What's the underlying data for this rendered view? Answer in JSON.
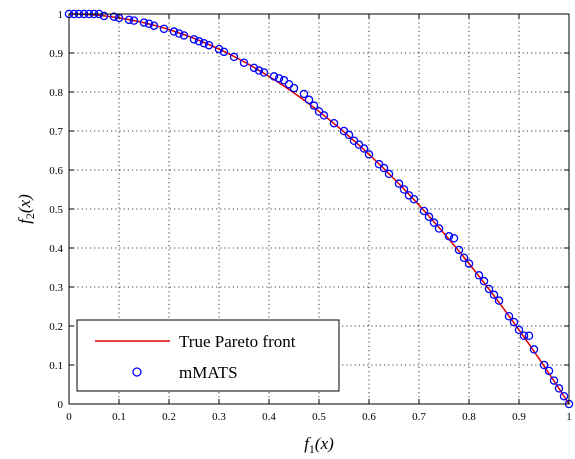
{
  "chart_data": {
    "type": "scatter",
    "xlabel": {
      "f": "f",
      "sub": "1",
      "arg": "(x)"
    },
    "ylabel": {
      "f": "f",
      "sub": "2",
      "arg": "(x)"
    },
    "xlim": [
      0,
      1
    ],
    "ylim": [
      0,
      1
    ],
    "xticks": [
      "0",
      "0.1",
      "0.2",
      "0.3",
      "0.4",
      "0.5",
      "0.6",
      "0.7",
      "0.8",
      "0.9",
      "1"
    ],
    "yticks": [
      "0",
      "0.1",
      "0.2",
      "0.3",
      "0.4",
      "0.5",
      "0.6",
      "0.7",
      "0.8",
      "0.9",
      "1"
    ],
    "grid": true,
    "grid_style": "dotted",
    "legend_position": "bottom-left",
    "series": [
      {
        "name": "True Pareto front",
        "kind": "line",
        "color": "#dd0000",
        "equation": "f2 = 1 - f1^2",
        "x_range": [
          0,
          1
        ]
      },
      {
        "name": "mMATS",
        "kind": "scatter",
        "marker": "open-circle",
        "color": "#0000ff",
        "x": [
          0.0,
          0.01,
          0.02,
          0.03,
          0.04,
          0.05,
          0.06,
          0.07,
          0.09,
          0.1,
          0.12,
          0.13,
          0.15,
          0.16,
          0.17,
          0.19,
          0.21,
          0.22,
          0.23,
          0.25,
          0.26,
          0.27,
          0.28,
          0.3,
          0.31,
          0.33,
          0.35,
          0.37,
          0.38,
          0.39,
          0.41,
          0.42,
          0.43,
          0.44,
          0.45,
          0.47,
          0.48,
          0.49,
          0.5,
          0.51,
          0.53,
          0.55,
          0.56,
          0.57,
          0.58,
          0.59,
          0.6,
          0.62,
          0.63,
          0.64,
          0.66,
          0.67,
          0.68,
          0.69,
          0.71,
          0.72,
          0.73,
          0.74,
          0.76,
          0.77,
          0.78,
          0.79,
          0.8,
          0.82,
          0.83,
          0.84,
          0.85,
          0.86,
          0.88,
          0.89,
          0.9,
          0.91,
          0.92,
          0.93,
          0.95,
          0.96,
          0.97,
          0.98,
          0.99,
          1.0
        ],
        "y": [
          1.0,
          1.0,
          1.0,
          1.0,
          1.0,
          1.0,
          1.0,
          0.995,
          0.993,
          0.99,
          0.985,
          0.983,
          0.978,
          0.975,
          0.97,
          0.962,
          0.955,
          0.95,
          0.945,
          0.935,
          0.93,
          0.925,
          0.92,
          0.91,
          0.903,
          0.89,
          0.875,
          0.862,
          0.855,
          0.85,
          0.84,
          0.835,
          0.83,
          0.82,
          0.81,
          0.795,
          0.78,
          0.765,
          0.75,
          0.74,
          0.72,
          0.7,
          0.69,
          0.675,
          0.665,
          0.655,
          0.64,
          0.615,
          0.605,
          0.59,
          0.565,
          0.55,
          0.535,
          0.525,
          0.495,
          0.48,
          0.465,
          0.45,
          0.43,
          0.425,
          0.395,
          0.375,
          0.36,
          0.33,
          0.315,
          0.295,
          0.28,
          0.265,
          0.225,
          0.21,
          0.19,
          0.175,
          0.175,
          0.14,
          0.1,
          0.085,
          0.06,
          0.04,
          0.02,
          0.0
        ]
      }
    ]
  }
}
